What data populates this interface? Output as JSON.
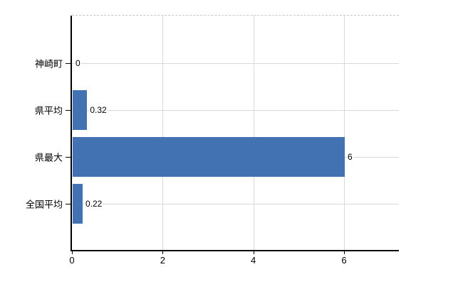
{
  "chart_data": {
    "type": "bar",
    "orientation": "horizontal",
    "title": "",
    "xlabel": "",
    "ylabel": "",
    "categories": [
      "神崎町",
      "県平均",
      "県最大",
      "全国平均"
    ],
    "values": [
      0,
      0.32,
      6,
      0.22
    ],
    "data_labels": [
      "0",
      "0.32",
      "6",
      "0.22"
    ],
    "x_ticks": [
      0,
      2,
      4,
      6
    ],
    "x_tick_labels": [
      "0",
      "2",
      "4",
      "6"
    ],
    "xlim": [
      0,
      7.21
    ],
    "grid": true,
    "legend": false,
    "colors": {
      "bar": "#4272b2",
      "gridline": "#d9d9d9",
      "plot_top_dashed_border": "#c8c8c8",
      "axis": "#000000",
      "text": "#000000",
      "background": "#ffffff"
    }
  }
}
